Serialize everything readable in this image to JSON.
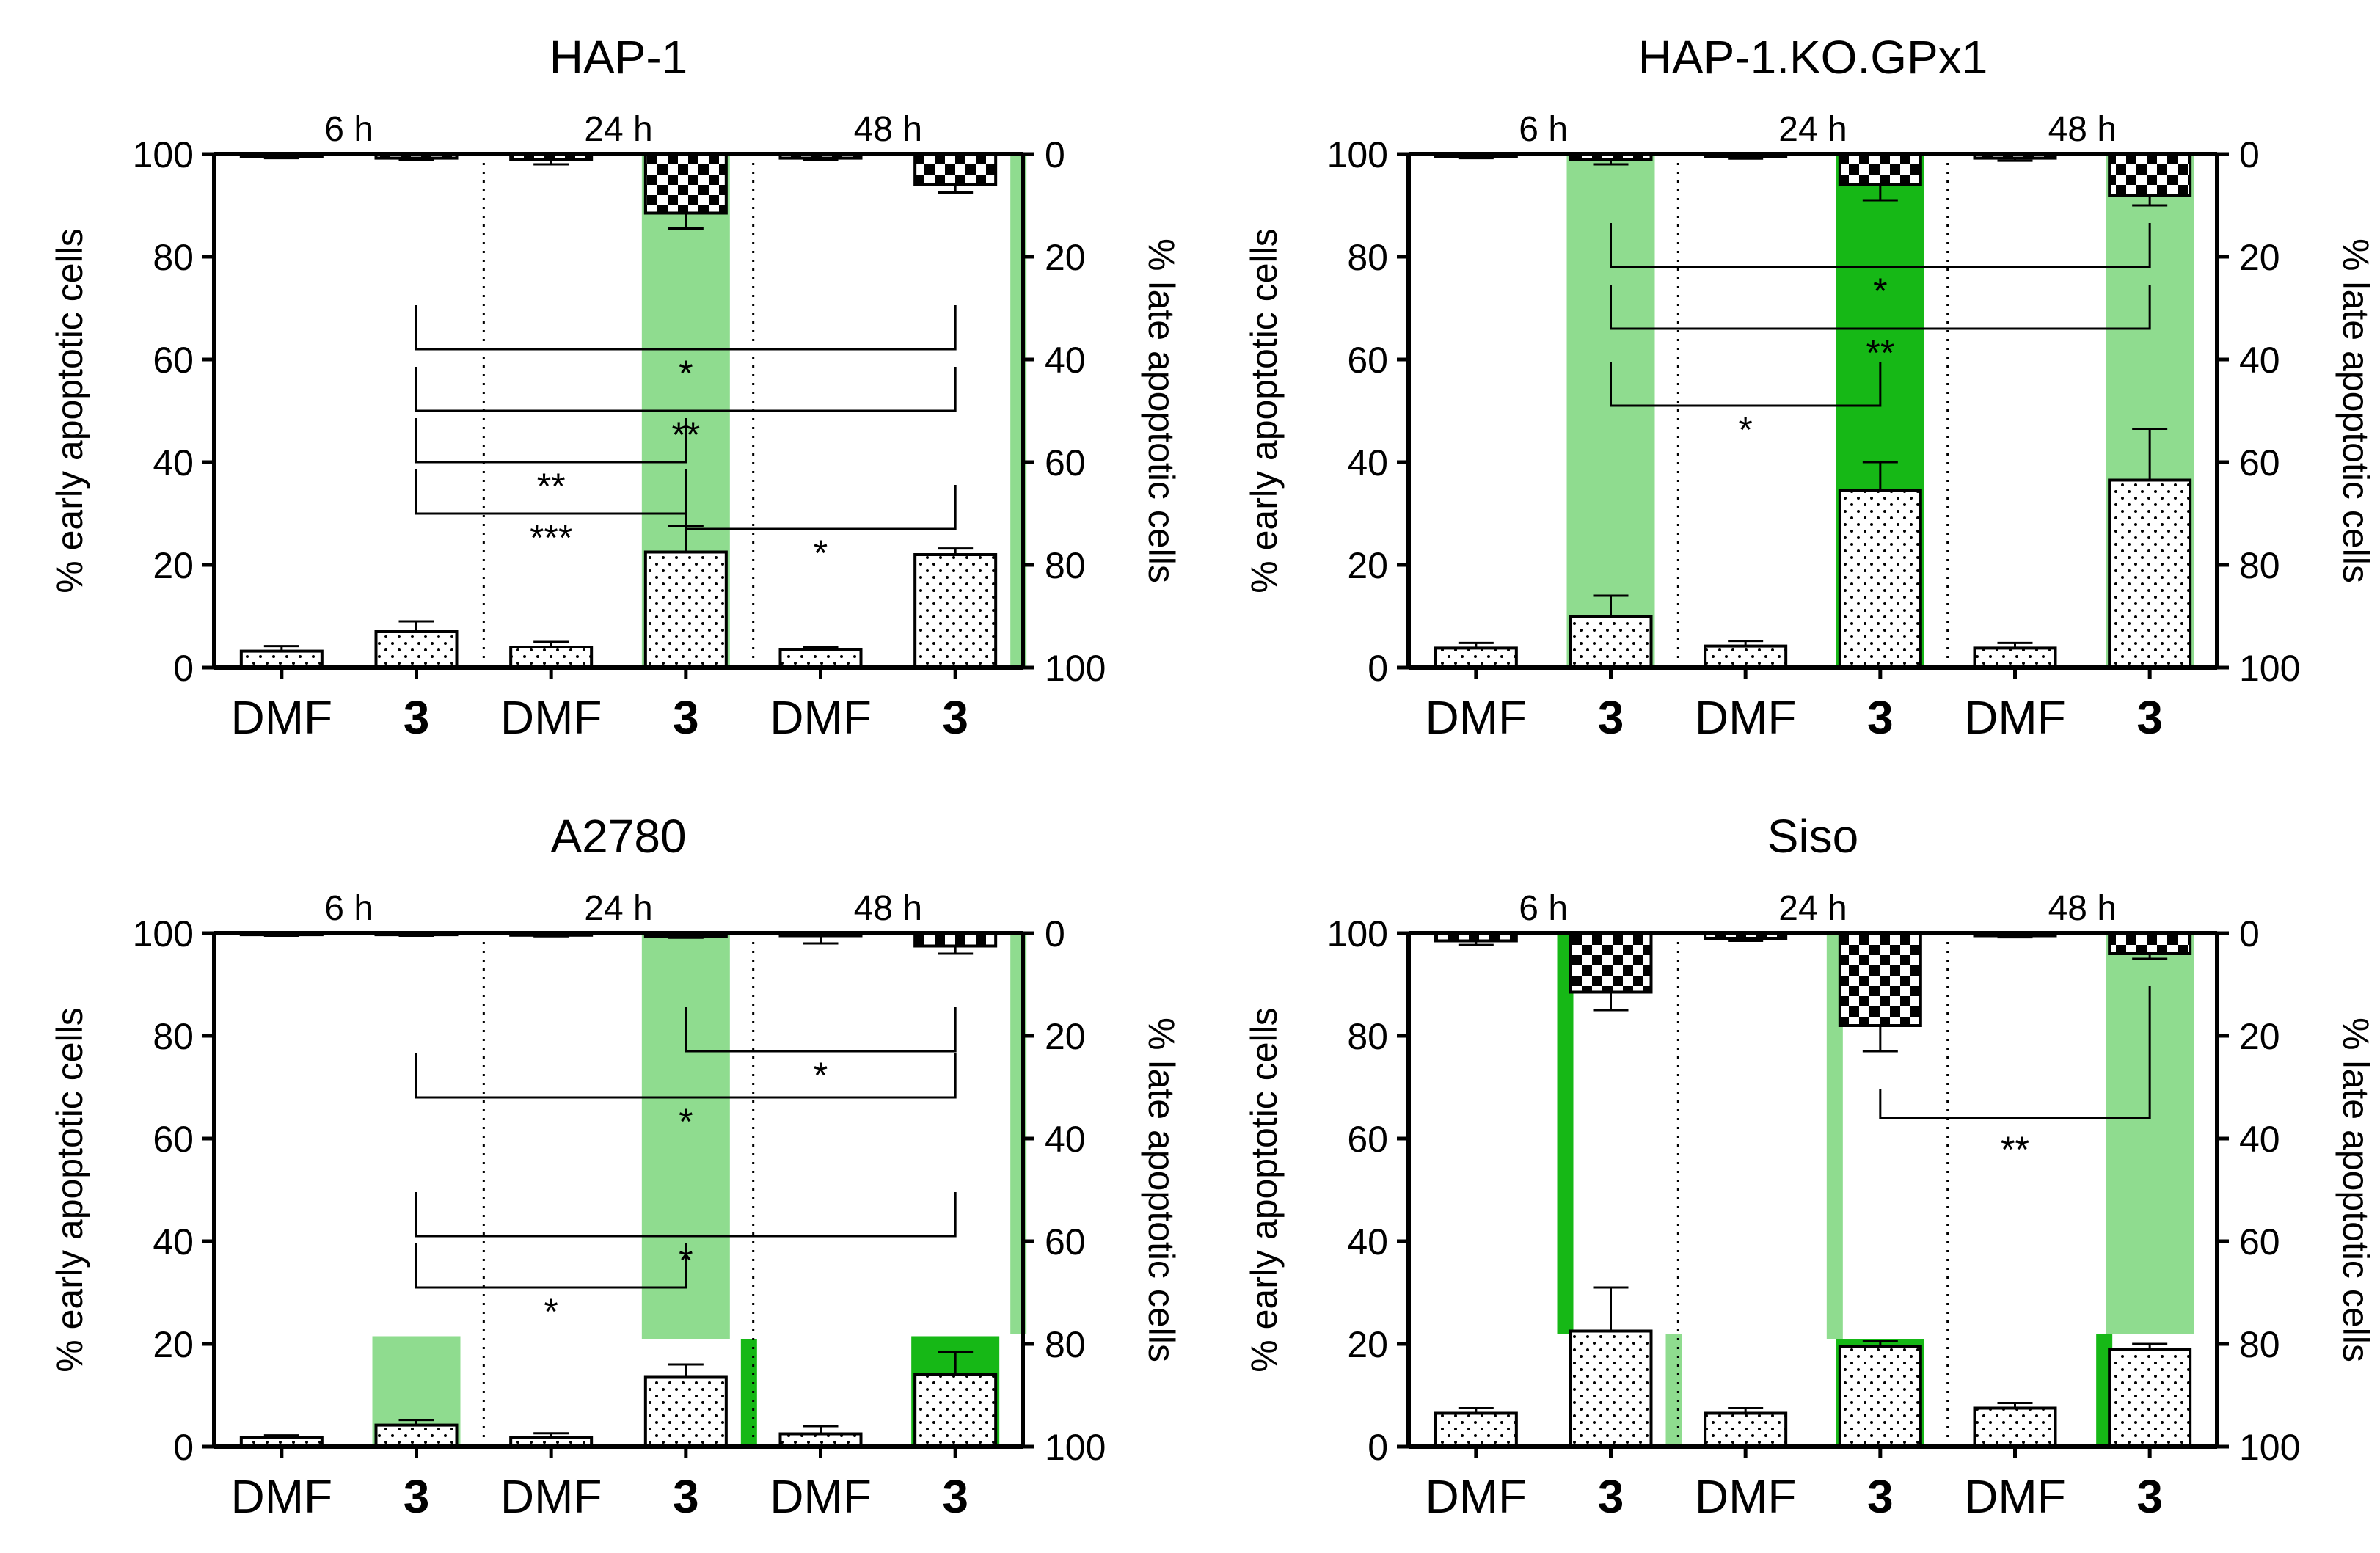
{
  "chart_data": [
    {
      "type": "bar",
      "title": "HAP-1",
      "time_labels": [
        "6 h",
        "24 h",
        "48 h"
      ],
      "categories": [
        "DMF",
        "3",
        "DMF",
        "3",
        "DMF",
        "3"
      ],
      "ylabel": "% early apoptotic cells",
      "y2label": "% late apoptotic cells",
      "ylim": [
        0,
        100
      ],
      "y2lim": [
        100,
        0
      ],
      "yticks": [
        "0",
        "20",
        "40",
        "60",
        "80",
        "100"
      ],
      "y2ticks": [
        "0",
        "20",
        "40",
        "60",
        "80",
        "100"
      ],
      "series": [
        {
          "name": "early apoptotic",
          "values": [
            3.2,
            7.0,
            4.0,
            22.5,
            3.5,
            22.0
          ],
          "errors": [
            1.0,
            2.0,
            1.0,
            5.0,
            0.5,
            1.2
          ]
        },
        {
          "name": "late apoptotic",
          "values": [
            0.5,
            0.8,
            1.0,
            11.5,
            0.8,
            6.0
          ],
          "errors": [
            0.3,
            0.4,
            1.0,
            3.0,
            0.4,
            1.5
          ]
        }
      ],
      "highlights": [
        {
          "bar": 3,
          "from": 0,
          "to": 100,
          "shade": "light"
        },
        {
          "bar": 5,
          "from": 0,
          "to": 100,
          "shade": "light",
          "edge": "right"
        }
      ],
      "significance": [
        {
          "from": 1,
          "to": 3,
          "y": 30,
          "label": "***"
        },
        {
          "from": 3,
          "to": 5,
          "y": 27,
          "label": "*"
        },
        {
          "from": 1,
          "to": 5,
          "y": 62,
          "label": "*"
        },
        {
          "from": 1,
          "to": 5,
          "y": 50,
          "label": "**"
        },
        {
          "from": 1,
          "to": 3,
          "y": 40,
          "label": "**"
        }
      ]
    },
    {
      "type": "bar",
      "title": "HAP-1.KO.GPx1",
      "time_labels": [
        "6 h",
        "24 h",
        "48 h"
      ],
      "categories": [
        "DMF",
        "3",
        "DMF",
        "3",
        "DMF",
        "3"
      ],
      "ylabel": "% early apoptotic cells",
      "y2label": "% late apoptotic cells",
      "ylim": [
        0,
        100
      ],
      "y2lim": [
        100,
        0
      ],
      "yticks": [
        "0",
        "20",
        "40",
        "60",
        "80",
        "100"
      ],
      "y2ticks": [
        "0",
        "20",
        "40",
        "60",
        "80",
        "100"
      ],
      "series": [
        {
          "name": "early apoptotic",
          "values": [
            3.8,
            10.0,
            4.2,
            34.5,
            3.8,
            36.5
          ],
          "errors": [
            1.0,
            4.0,
            1.0,
            5.5,
            1.0,
            10.0
          ]
        },
        {
          "name": "late apoptotic",
          "values": [
            0.5,
            1.0,
            0.5,
            6.0,
            0.8,
            8.0
          ],
          "errors": [
            0.3,
            1.0,
            0.4,
            3.0,
            0.5,
            2.0
          ]
        }
      ],
      "highlights": [
        {
          "bar": 1,
          "from": 0,
          "to": 100,
          "shade": "light"
        },
        {
          "bar": 3,
          "from": 0,
          "to": 100,
          "shade": "dark"
        },
        {
          "bar": 5,
          "from": 0,
          "to": 100,
          "shade": "light"
        }
      ],
      "significance": [
        {
          "from": 1,
          "to": 5,
          "y": 78,
          "label": "*"
        },
        {
          "from": 1,
          "to": 5,
          "y": 66,
          "label": "**"
        },
        {
          "from": 1,
          "to": 3,
          "y": 51,
          "label": "*"
        }
      ]
    },
    {
      "type": "bar",
      "title": "A2780",
      "time_labels": [
        "6 h",
        "24 h",
        "48 h"
      ],
      "categories": [
        "DMF",
        "3",
        "DMF",
        "3",
        "DMF",
        "3"
      ],
      "ylabel": "% early apoptotic cells",
      "y2label": "% late apoptotic cells",
      "ylim": [
        0,
        100
      ],
      "y2lim": [
        100,
        0
      ],
      "yticks": [
        "0",
        "20",
        "40",
        "60",
        "80",
        "100"
      ],
      "y2ticks": [
        "0",
        "20",
        "40",
        "60",
        "80",
        "100"
      ],
      "series": [
        {
          "name": "early apoptotic",
          "values": [
            1.8,
            4.2,
            1.8,
            13.5,
            2.5,
            14.0
          ],
          "errors": [
            0.4,
            1.0,
            0.8,
            2.5,
            1.5,
            4.5
          ]
        },
        {
          "name": "late apoptotic",
          "values": [
            0.3,
            0.3,
            0.4,
            0.6,
            0.5,
            2.5
          ],
          "errors": [
            0.2,
            0.2,
            0.2,
            0.3,
            1.5,
            1.5
          ]
        }
      ],
      "highlights": [
        {
          "bar": 1,
          "from": 0,
          "to": 21.5,
          "shade": "light"
        },
        {
          "bar": 3,
          "from": 21,
          "to": 100,
          "shade": "light"
        },
        {
          "bar": 3,
          "from": 0,
          "to": 21,
          "shade": "dark",
          "edge": "right"
        },
        {
          "bar": 5,
          "from": 0,
          "to": 21.5,
          "shade": "dark"
        },
        {
          "bar": 5,
          "from": 22,
          "to": 100,
          "shade": "light",
          "edge": "right"
        }
      ],
      "significance": [
        {
          "from": 3,
          "to": 5,
          "y": 77,
          "label": "*"
        },
        {
          "from": 1,
          "to": 5,
          "y": 68,
          "label": "*"
        },
        {
          "from": 1,
          "to": 5,
          "y": 41,
          "label": "*"
        },
        {
          "from": 1,
          "to": 3,
          "y": 31,
          "label": "*"
        }
      ]
    },
    {
      "type": "bar",
      "title": "Siso",
      "time_labels": [
        "6 h",
        "24 h",
        "48 h"
      ],
      "categories": [
        "DMF",
        "3",
        "DMF",
        "3",
        "DMF",
        "3"
      ],
      "ylabel": "% early apoptotic cells",
      "y2label": "% late apoptotic cells",
      "ylim": [
        0,
        100
      ],
      "y2lim": [
        100,
        0
      ],
      "yticks": [
        "0",
        "20",
        "40",
        "60",
        "80",
        "100"
      ],
      "y2ticks": [
        "0",
        "20",
        "40",
        "60",
        "80",
        "100"
      ],
      "series": [
        {
          "name": "early apoptotic",
          "values": [
            6.5,
            22.5,
            6.5,
            19.5,
            7.5,
            19.0
          ],
          "errors": [
            1.0,
            8.5,
            1.0,
            1.0,
            1.0,
            1.0
          ]
        },
        {
          "name": "late apoptotic",
          "values": [
            1.5,
            11.5,
            1.0,
            18.0,
            0.5,
            4.0
          ],
          "errors": [
            0.8,
            3.5,
            0.5,
            5.0,
            0.3,
            1.0
          ]
        }
      ],
      "highlights": [
        {
          "bar": 1,
          "from": 22,
          "to": 100,
          "shade": "dark",
          "edge": "left"
        },
        {
          "bar": 1,
          "from": 0,
          "to": 22,
          "shade": "light",
          "edge": "right"
        },
        {
          "bar": 3,
          "from": 21,
          "to": 100,
          "shade": "light",
          "edge": "left"
        },
        {
          "bar": 3,
          "from": 0,
          "to": 21,
          "shade": "dark"
        },
        {
          "bar": 5,
          "from": 0,
          "to": 22,
          "shade": "dark",
          "edge": "left"
        },
        {
          "bar": 5,
          "from": 22,
          "to": 100,
          "shade": "light"
        }
      ],
      "significance": [
        {
          "from": 3,
          "to": 5,
          "y": 64,
          "label": "**",
          "gap": true
        }
      ]
    }
  ],
  "colors": {
    "highlight_light": "#8fdc8f",
    "highlight_dark": "#16b816",
    "axis": "#000000",
    "bar_fill": "#ffffff"
  }
}
